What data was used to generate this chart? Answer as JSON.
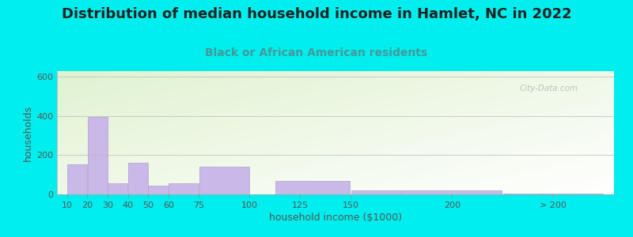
{
  "title": "Distribution of median household income in Hamlet, NC in 2022",
  "subtitle": "Black or African American residents",
  "xlabel": "household income ($1000)",
  "ylabel": "households",
  "bar_color": "#c9b8e8",
  "bar_edgecolor": "#b0a0d0",
  "background_outer": "#00eeee",
  "watermark": "City-Data.com",
  "bar_lefts": [
    10,
    20,
    30,
    40,
    50,
    60,
    75,
    100,
    112.5,
    150,
    175,
    225
  ],
  "bar_widths": [
    10,
    10,
    10,
    10,
    10,
    15,
    25,
    12.5,
    37.5,
    25,
    50,
    50
  ],
  "bar_heights": [
    155,
    395,
    55,
    160,
    45,
    55,
    140,
    0,
    70,
    22,
    22,
    5
  ],
  "xtick_positions": [
    10,
    20,
    30,
    40,
    50,
    60,
    75,
    100,
    125,
    150,
    200,
    250
  ],
  "xtick_labels": [
    "10",
    "20",
    "30",
    "40",
    "50",
    "60",
    "75",
    "100",
    "125",
    "150",
    "200",
    "> 200"
  ],
  "ylim": [
    0,
    630
  ],
  "yticks": [
    0,
    200,
    400,
    600
  ],
  "title_fontsize": 13,
  "subtitle_fontsize": 10,
  "axis_label_fontsize": 9,
  "tick_fontsize": 8
}
